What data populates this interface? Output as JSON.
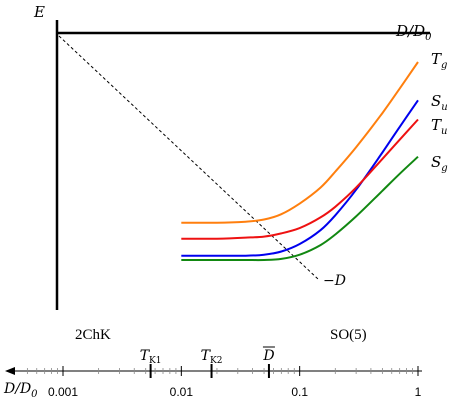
{
  "chart_data": [
    {
      "type": "line",
      "title": "",
      "axes": {
        "y_label": "E",
        "x_label": "D/D",
        "x_label_sub": "0"
      },
      "xlim": [
        0.0005,
        1
      ],
      "x_scale": "log",
      "annotation_line": {
        "label": "−D",
        "style": "dashed"
      },
      "region_labels": {
        "left": "2ChK",
        "right": "SO(5)"
      },
      "series": [
        {
          "name": "T",
          "name_sub": "g",
          "color": "#ff7f0e",
          "x": [
            0.01,
            0.02,
            0.035,
            0.05,
            0.07,
            0.1,
            0.15,
            0.2,
            0.3,
            0.5,
            0.7,
            1.0
          ],
          "y": [
            -0.93,
            -0.93,
            -0.92,
            -0.9,
            -0.85,
            -0.75,
            -0.6,
            -0.45,
            -0.22,
            0.1,
            0.33,
            0.58
          ]
        },
        {
          "name": "S",
          "name_sub": "u",
          "color": "#0000ee",
          "x": [
            0.01,
            0.02,
            0.035,
            0.05,
            0.07,
            0.1,
            0.15,
            0.2,
            0.3,
            0.5,
            0.7,
            1.0
          ],
          "y": [
            -1.24,
            -1.24,
            -1.24,
            -1.23,
            -1.2,
            -1.13,
            -1.0,
            -0.86,
            -0.62,
            -0.27,
            -0.03,
            0.22
          ]
        },
        {
          "name": "T",
          "name_sub": "u",
          "color": "#ee1111",
          "x": [
            0.01,
            0.02,
            0.035,
            0.05,
            0.07,
            0.1,
            0.15,
            0.2,
            0.3,
            0.5,
            0.7,
            1.0
          ],
          "y": [
            -1.08,
            -1.08,
            -1.07,
            -1.06,
            -1.03,
            -0.98,
            -0.88,
            -0.78,
            -0.6,
            -0.33,
            -0.15,
            0.04
          ]
        },
        {
          "name": "S",
          "name_sub": "g",
          "color": "#118811",
          "x": [
            0.01,
            0.02,
            0.035,
            0.05,
            0.07,
            0.1,
            0.15,
            0.2,
            0.3,
            0.5,
            0.7,
            1.0
          ],
          "y": [
            -1.28,
            -1.28,
            -1.28,
            -1.28,
            -1.27,
            -1.23,
            -1.14,
            -1.04,
            -0.87,
            -0.63,
            -0.47,
            -0.31
          ]
        }
      ],
      "bottom_axis": {
        "label": "D/D",
        "label_sub": "0",
        "ticks": [
          "0.001",
          "0.01",
          "0.1",
          "1"
        ],
        "tick_values": [
          0.001,
          0.01,
          0.1,
          1
        ],
        "markers": [
          {
            "label": "T",
            "label_sub": "K1",
            "value": 0.0055
          },
          {
            "label": "T",
            "label_sub": "K2",
            "value": 0.018
          },
          {
            "label": "D",
            "overline": true,
            "value": 0.055
          }
        ]
      }
    }
  ]
}
